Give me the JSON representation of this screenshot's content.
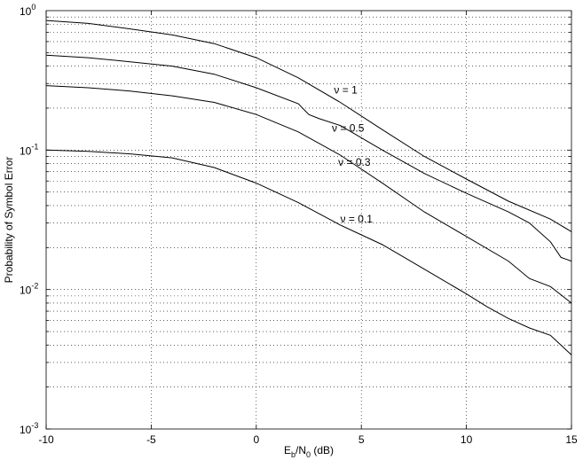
{
  "chart_data": {
    "type": "line",
    "xlabel": "E_b/N_0 (dB)",
    "xlabel_parts": {
      "base1": "E",
      "sub1": "b",
      "mid": "/N",
      "sub2": "0",
      "tail": " (dB)"
    },
    "ylabel": "Probability of Symbol Error",
    "xlim": [
      -10,
      15
    ],
    "ylim": [
      0.001,
      1
    ],
    "yscale": "log",
    "grid": true,
    "x_ticks": [
      "-10",
      "-5",
      "0",
      "5",
      "10",
      "15"
    ],
    "y_ticks": [
      {
        "base": "10",
        "exp": "0"
      },
      {
        "base": "10",
        "exp": "-1"
      },
      {
        "base": "10",
        "exp": "-2"
      },
      {
        "base": "10",
        "exp": "-3"
      }
    ],
    "series": [
      {
        "name": "ν = 1",
        "x": [
          -10,
          -8,
          -6,
          -4,
          -2,
          0,
          2,
          4,
          6,
          8,
          10,
          12,
          14,
          15
        ],
        "y": [
          0.85,
          0.81,
          0.74,
          0.67,
          0.58,
          0.46,
          0.33,
          0.22,
          0.14,
          0.09,
          0.062,
          0.043,
          0.032,
          0.026
        ]
      },
      {
        "name": "ν = 0.5",
        "x": [
          -10,
          -8,
          -6,
          -4,
          -2,
          0,
          2,
          2.5,
          3,
          4,
          6,
          8,
          10,
          12,
          13,
          14,
          14.5,
          15
        ],
        "y": [
          0.48,
          0.46,
          0.43,
          0.4,
          0.35,
          0.28,
          0.215,
          0.18,
          0.168,
          0.15,
          0.1,
          0.068,
          0.049,
          0.036,
          0.03,
          0.022,
          0.017,
          0.016
        ]
      },
      {
        "name": "ν = 0.3",
        "x": [
          -10,
          -8,
          -6,
          -4,
          -2,
          0,
          2,
          4,
          6,
          8,
          10,
          12,
          13,
          14,
          15
        ],
        "y": [
          0.29,
          0.28,
          0.265,
          0.245,
          0.22,
          0.18,
          0.135,
          0.092,
          0.058,
          0.036,
          0.024,
          0.016,
          0.012,
          0.0105,
          0.008
        ]
      },
      {
        "name": "ν = 0.1",
        "x": [
          -10,
          -8,
          -6,
          -4,
          -2,
          0,
          2,
          4,
          6,
          8,
          10,
          11,
          12,
          13,
          14,
          15
        ],
        "y": [
          0.1,
          0.098,
          0.094,
          0.088,
          0.075,
          0.058,
          0.042,
          0.029,
          0.021,
          0.014,
          0.0093,
          0.0075,
          0.0062,
          0.0053,
          0.0047,
          0.0034
        ]
      }
    ],
    "annotations": [
      {
        "text": "ν = 1",
        "x": 3.7,
        "y": 0.27
      },
      {
        "text": "ν = 0.5",
        "x": 3.6,
        "y": 0.144
      },
      {
        "text": "ν = 0.3",
        "x": 3.9,
        "y": 0.082
      },
      {
        "text": "ν = 0.1",
        "x": 4.0,
        "y": 0.032
      }
    ]
  }
}
